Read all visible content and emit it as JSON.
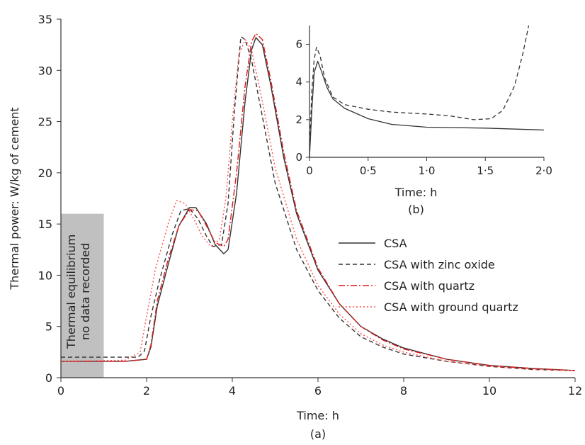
{
  "chart_data": [
    {
      "type": "line",
      "panel_label": "(a)",
      "xlabel": "Time: h",
      "ylabel": "Thermal power: W/kg of cement",
      "xlim": [
        0,
        12
      ],
      "ylim": [
        0,
        35
      ],
      "xticks": [
        0,
        2,
        4,
        6,
        8,
        10,
        12
      ],
      "yticks": [
        0,
        5,
        10,
        15,
        20,
        25,
        30,
        35
      ],
      "xtick_labels": [
        "0",
        "2",
        "4",
        "6",
        "8",
        "10",
        "12"
      ],
      "ytick_labels": [
        "0",
        "5",
        "10",
        "15",
        "20",
        "25",
        "30",
        "35"
      ],
      "annotation": {
        "lines": [
          "Thermal equilibrium",
          "no data recorded"
        ],
        "x_range": [
          0,
          1
        ],
        "y_range": [
          0,
          16
        ],
        "color": "#c0c0c0"
      },
      "legend_placement": "center-right",
      "series": [
        {
          "name": "CSA",
          "color": "#333333",
          "dash": "solid",
          "points": [
            [
              0,
              1.6
            ],
            [
              1.5,
              1.6
            ],
            [
              2.0,
              1.8
            ],
            [
              2.1,
              3.0
            ],
            [
              2.25,
              7.0
            ],
            [
              2.5,
              11.0
            ],
            [
              2.75,
              14.8
            ],
            [
              3.0,
              16.6
            ],
            [
              3.15,
              16.6
            ],
            [
              3.4,
              15.0
            ],
            [
              3.6,
              13.0
            ],
            [
              3.8,
              12.1
            ],
            [
              3.9,
              12.5
            ],
            [
              4.1,
              18.0
            ],
            [
              4.3,
              27.0
            ],
            [
              4.45,
              32.0
            ],
            [
              4.55,
              33.2
            ],
            [
              4.7,
              32.5
            ],
            [
              4.9,
              28.5
            ],
            [
              5.2,
              21.5
            ],
            [
              5.5,
              16.0
            ],
            [
              6.0,
              10.5
            ],
            [
              6.5,
              7.2
            ],
            [
              7.0,
              5.0
            ],
            [
              7.5,
              3.8
            ],
            [
              8.0,
              2.9
            ],
            [
              9.0,
              1.8
            ],
            [
              10.0,
              1.2
            ],
            [
              11.0,
              0.9
            ],
            [
              12.0,
              0.7
            ]
          ]
        },
        {
          "name": "CSA with zinc oxide",
          "color": "#333333",
          "dash": "dashed",
          "points": [
            [
              0,
              2.0
            ],
            [
              1.8,
              2.0
            ],
            [
              1.95,
              2.6
            ],
            [
              2.1,
              6.0
            ],
            [
              2.3,
              9.5
            ],
            [
              2.6,
              14.0
            ],
            [
              2.8,
              16.3
            ],
            [
              3.0,
              16.5
            ],
            [
              3.2,
              15.5
            ],
            [
              3.4,
              13.8
            ],
            [
              3.55,
              12.8
            ],
            [
              3.75,
              13.0
            ],
            [
              3.9,
              17.0
            ],
            [
              4.05,
              26.0
            ],
            [
              4.2,
              33.3
            ],
            [
              4.3,
              33.0
            ],
            [
              4.45,
              31.0
            ],
            [
              4.7,
              25.5
            ],
            [
              5.0,
              19.0
            ],
            [
              5.5,
              12.5
            ],
            [
              6.0,
              8.5
            ],
            [
              6.5,
              5.8
            ],
            [
              7.0,
              4.0
            ],
            [
              7.5,
              3.0
            ],
            [
              8.0,
              2.3
            ],
            [
              9.0,
              1.6
            ],
            [
              10.0,
              1.1
            ],
            [
              11.0,
              0.8
            ],
            [
              12.0,
              0.7
            ]
          ]
        },
        {
          "name": "CSA with quartz",
          "color": "#e01818",
          "dash": "dashdot",
          "points": [
            [
              0,
              1.6
            ],
            [
              1.5,
              1.6
            ],
            [
              2.0,
              1.8
            ],
            [
              2.1,
              3.2
            ],
            [
              2.25,
              7.5
            ],
            [
              2.5,
              11.5
            ],
            [
              2.75,
              14.8
            ],
            [
              3.0,
              16.4
            ],
            [
              3.2,
              16.3
            ],
            [
              3.4,
              14.8
            ],
            [
              3.6,
              13.2
            ],
            [
              3.8,
              12.8
            ],
            [
              3.9,
              13.5
            ],
            [
              4.1,
              20.0
            ],
            [
              4.3,
              28.5
            ],
            [
              4.45,
              32.8
            ],
            [
              4.55,
              33.6
            ],
            [
              4.7,
              33.0
            ],
            [
              4.9,
              29.0
            ],
            [
              5.2,
              22.0
            ],
            [
              5.5,
              16.3
            ],
            [
              6.0,
              10.7
            ],
            [
              6.5,
              7.2
            ],
            [
              7.0,
              5.0
            ],
            [
              7.5,
              3.7
            ],
            [
              8.0,
              2.8
            ],
            [
              9.0,
              1.8
            ],
            [
              10.0,
              1.2
            ],
            [
              11.0,
              0.9
            ],
            [
              12.0,
              0.7
            ]
          ]
        },
        {
          "name": "CSA with ground quartz",
          "color": "#ff4d4d",
          "dash": "dotted",
          "points": [
            [
              0,
              1.6
            ],
            [
              1.5,
              1.7
            ],
            [
              1.85,
              2.5
            ],
            [
              2.0,
              6.0
            ],
            [
              2.2,
              10.5
            ],
            [
              2.5,
              15.0
            ],
            [
              2.7,
              17.3
            ],
            [
              2.9,
              17.0
            ],
            [
              3.1,
              15.5
            ],
            [
              3.3,
              13.8
            ],
            [
              3.5,
              12.8
            ],
            [
              3.7,
              13.5
            ],
            [
              3.85,
              17.5
            ],
            [
              4.0,
              25.0
            ],
            [
              4.15,
              31.5
            ],
            [
              4.3,
              33.0
            ],
            [
              4.45,
              32.0
            ],
            [
              4.7,
              27.0
            ],
            [
              5.0,
              20.5
            ],
            [
              5.5,
              13.5
            ],
            [
              6.0,
              9.0
            ],
            [
              6.5,
              6.2
            ],
            [
              7.0,
              4.3
            ],
            [
              7.5,
              3.2
            ],
            [
              8.0,
              2.5
            ],
            [
              9.0,
              1.6
            ],
            [
              10.0,
              1.1
            ],
            [
              11.0,
              0.8
            ],
            [
              12.0,
              0.7
            ]
          ]
        }
      ]
    },
    {
      "type": "line",
      "panel_label": "(b)",
      "xlabel": "Time: h",
      "ylabel": "",
      "xlim": [
        0,
        2
      ],
      "ylim": [
        0,
        7
      ],
      "xticks": [
        0,
        0.5,
        1,
        1.5,
        2
      ],
      "yticks": [
        0,
        2,
        4,
        6
      ],
      "xtick_labels": [
        "0",
        "0·5",
        "1·0",
        "1·5",
        "2·0"
      ],
      "ytick_labels": [
        "0",
        "2",
        "4",
        "6"
      ],
      "series": [
        {
          "ref": "CSA",
          "color": "#333333",
          "dash": "solid",
          "points": [
            [
              0,
              0
            ],
            [
              0.02,
              2.5
            ],
            [
              0.04,
              4.5
            ],
            [
              0.07,
              5.1
            ],
            [
              0.1,
              4.6
            ],
            [
              0.15,
              3.7
            ],
            [
              0.2,
              3.1
            ],
            [
              0.3,
              2.6
            ],
            [
              0.5,
              2.05
            ],
            [
              0.7,
              1.75
            ],
            [
              1.0,
              1.6
            ],
            [
              1.5,
              1.55
            ],
            [
              2.0,
              1.45
            ]
          ]
        },
        {
          "ref": "CSA with zinc oxide",
          "color": "#333333",
          "dash": "dashed",
          "points": [
            [
              0,
              0.4
            ],
            [
              0.02,
              3.5
            ],
            [
              0.04,
              5.2
            ],
            [
              0.06,
              5.85
            ],
            [
              0.09,
              5.4
            ],
            [
              0.13,
              4.2
            ],
            [
              0.2,
              3.2
            ],
            [
              0.3,
              2.8
            ],
            [
              0.5,
              2.55
            ],
            [
              0.7,
              2.4
            ],
            [
              1.0,
              2.3
            ],
            [
              1.2,
              2.2
            ],
            [
              1.4,
              2.0
            ],
            [
              1.55,
              2.05
            ],
            [
              1.65,
              2.5
            ],
            [
              1.75,
              3.8
            ],
            [
              1.82,
              5.5
            ],
            [
              1.87,
              7.0
            ]
          ]
        }
      ]
    }
  ]
}
